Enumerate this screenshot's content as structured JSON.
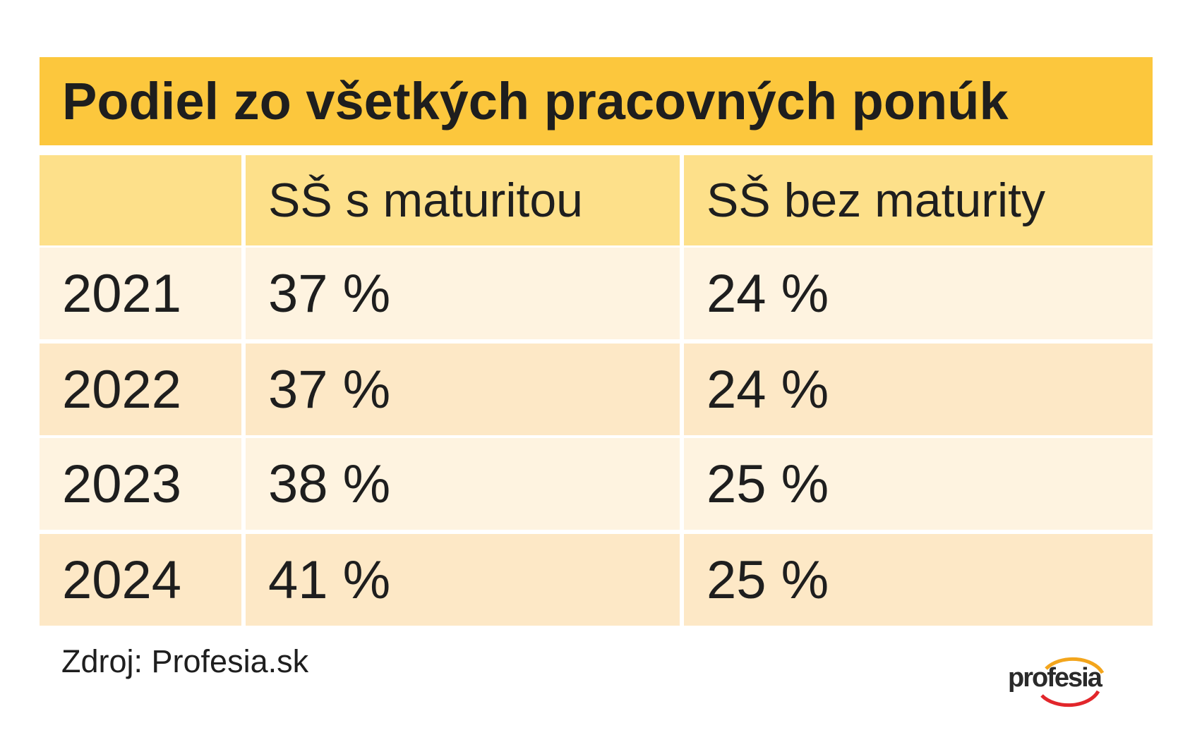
{
  "header": {
    "title": "Podiel zo všetkých pracovných ponúk"
  },
  "table": {
    "columns": [
      "",
      "SŠ s maturitou",
      "SŠ bez maturity"
    ],
    "rows": [
      [
        "2021",
        "37 %",
        "24 %"
      ],
      [
        "2022",
        "37 %",
        "24 %"
      ],
      [
        "2023",
        "38 %",
        "25 %"
      ],
      [
        "2024",
        "41 %",
        "25 %"
      ]
    ]
  },
  "footer": {
    "source": "Zdroj: Profesia.sk",
    "logo": "profesia"
  }
}
